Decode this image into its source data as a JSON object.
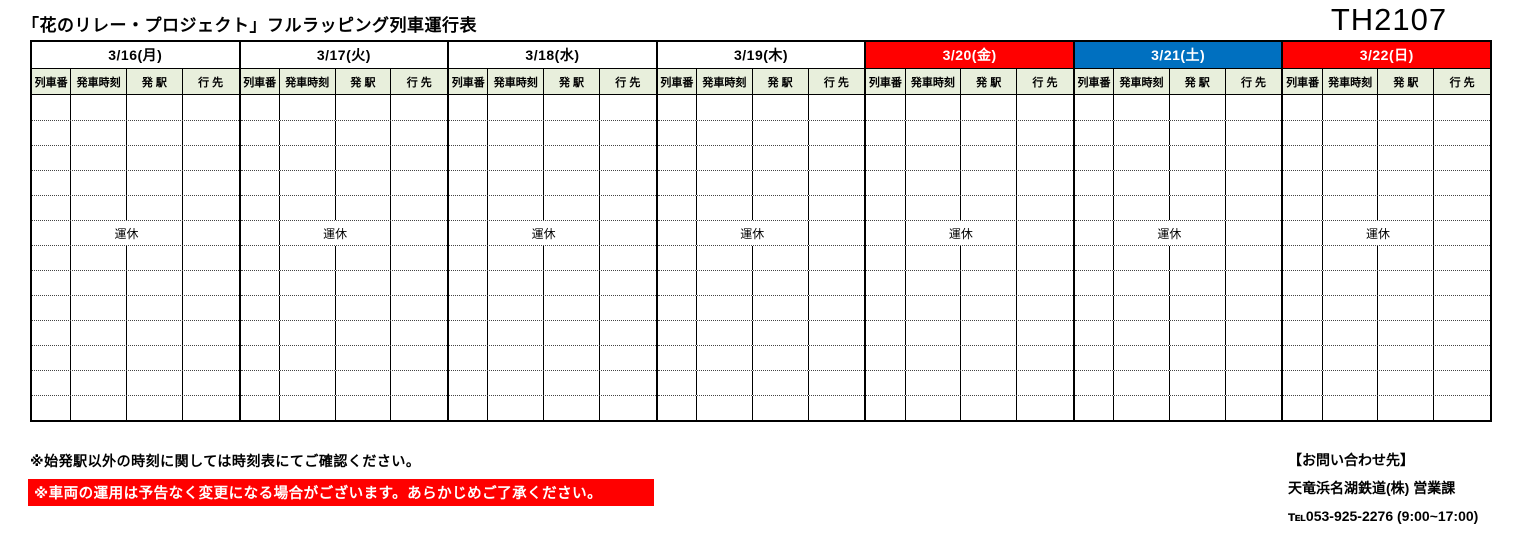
{
  "page": {
    "title": "「花のリレー・プロジェクト」フルラッピング列車運行表",
    "train_id": "TH2107"
  },
  "table": {
    "columns": [
      "列車番",
      "発車時刻",
      "発 駅",
      "行 先"
    ],
    "days": [
      {
        "date": "3/16(月)",
        "header_style": "plain"
      },
      {
        "date": "3/17(火)",
        "header_style": "plain"
      },
      {
        "date": "3/18(水)",
        "header_style": "plain"
      },
      {
        "date": "3/19(木)",
        "header_style": "plain"
      },
      {
        "date": "3/20(金)",
        "header_style": "red"
      },
      {
        "date": "3/21(土)",
        "header_style": "blue"
      },
      {
        "date": "3/22(日)",
        "header_style": "red"
      }
    ],
    "body_row_count": 13,
    "suspended_row_index": 5,
    "suspended_label": "運休"
  },
  "colors": {
    "red": "#FF0000",
    "blue": "#0070C0",
    "subheader_green": "#E8EFDC"
  },
  "footer": {
    "note1": "※始発駅以外の時刻に関しては時刻表にてご確認ください。",
    "warning": "※車両の運用は予告なく変更になる場合がございます。あらかじめご了承ください。",
    "contact_heading": "【お問い合わせ先】",
    "contact_company": "天竜浜名湖鉄道(株) 営業課",
    "contact_phone": "℡053-925-2276 (9:00~17:00)"
  }
}
